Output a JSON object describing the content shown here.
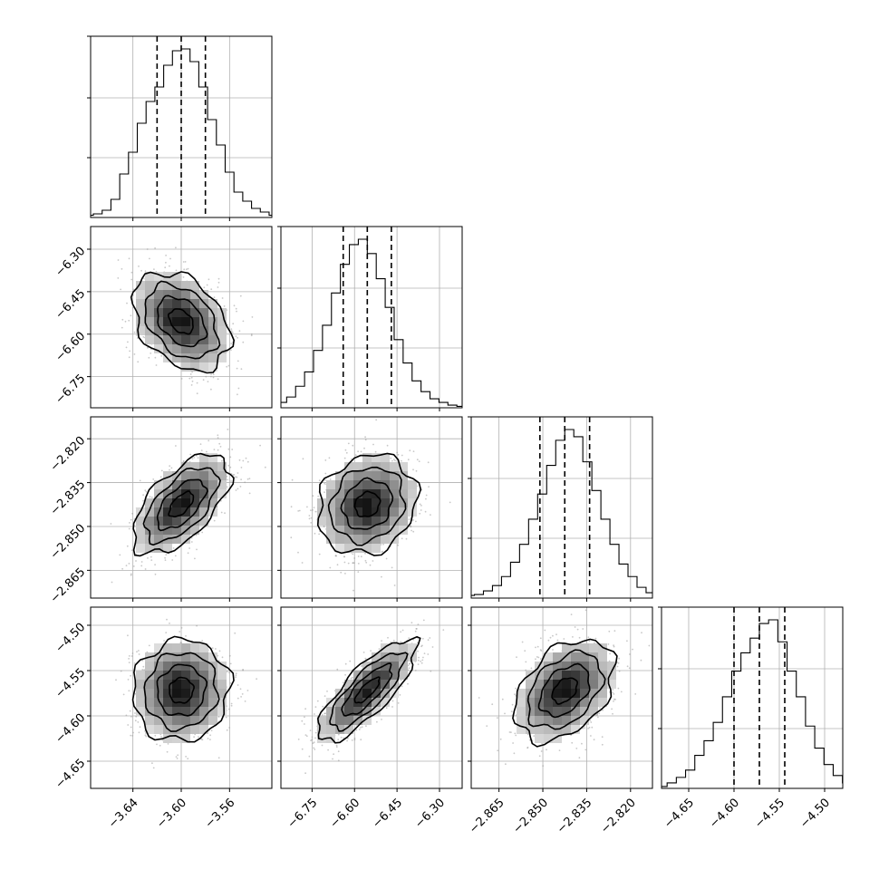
{
  "chart_data": {
    "type": "corner",
    "parameters": [
      {
        "range": [
          -3.675,
          -3.525
        ],
        "ticks": [
          -3.64,
          -3.6,
          -3.56
        ],
        "tick_labels": [
          "−3.64",
          "−3.60",
          "−3.56"
        ],
        "mean": -3.6,
        "std": 0.02,
        "quantiles": [
          -3.62,
          -3.6,
          -3.58
        ],
        "hist_counts": [
          0.012,
          0.02,
          0.04,
          0.1,
          0.24,
          0.36,
          0.52,
          0.64,
          0.72,
          0.84,
          0.92,
          0.93,
          0.86,
          0.72,
          0.54,
          0.4,
          0.25,
          0.14,
          0.09,
          0.05,
          0.03,
          0.012
        ]
      },
      {
        "range": [
          -6.86,
          -6.22
        ],
        "ticks": [
          -6.75,
          -6.6,
          -6.45,
          -6.3
        ],
        "tick_labels": [
          "−6.75",
          "−6.60",
          "−6.45",
          "−6.30"
        ],
        "mean": -6.555,
        "std": 0.087,
        "quantiles": [
          -6.64,
          -6.555,
          -6.47
        ],
        "hist_counts": [
          0.012,
          0.03,
          0.06,
          0.12,
          0.2,
          0.32,
          0.46,
          0.64,
          0.8,
          0.91,
          0.94,
          0.86,
          0.72,
          0.56,
          0.38,
          0.25,
          0.15,
          0.09,
          0.05,
          0.03,
          0.015,
          0.008
        ]
      },
      {
        "range": [
          -2.8745,
          -2.8125
        ],
        "ticks": [
          -2.865,
          -2.85,
          -2.835,
          -2.82
        ],
        "tick_labels": [
          "−2.865",
          "−2.850",
          "−2.835",
          "−2.820"
        ],
        "mean": -2.8425,
        "std": 0.0085,
        "quantiles": [
          -2.851,
          -2.8425,
          -2.834
        ],
        "hist_counts": [
          0.015,
          0.02,
          0.04,
          0.07,
          0.12,
          0.2,
          0.3,
          0.44,
          0.58,
          0.74,
          0.88,
          0.94,
          0.9,
          0.76,
          0.6,
          0.44,
          0.3,
          0.19,
          0.12,
          0.06,
          0.03,
          0.012
        ]
      },
      {
        "range": [
          -4.68,
          -4.48
        ],
        "ticks": [
          -4.65,
          -4.6,
          -4.55,
          -4.5
        ],
        "tick_labels": [
          "−4.65",
          "−4.60",
          "−4.55",
          "−4.50"
        ],
        "mean": -4.572,
        "std": 0.028,
        "quantiles": [
          -4.6,
          -4.572,
          -4.544
        ],
        "hist_counts": [
          0.01,
          0.03,
          0.06,
          0.1,
          0.18,
          0.26,
          0.36,
          0.5,
          0.64,
          0.74,
          0.82,
          0.9,
          0.92,
          0.8,
          0.64,
          0.5,
          0.34,
          0.22,
          0.13,
          0.07,
          0.03,
          0.015
        ]
      }
    ],
    "correlations": {
      "1-0": -0.35,
      "2-0": 0.6,
      "2-1": 0.15,
      "3-0": 0.05,
      "3-1": 0.8,
      "3-2": 0.4
    },
    "contour_levels_sigma": [
      0.5,
      1.0,
      1.5,
      2.0
    ],
    "hist_yticks": [
      0.33,
      0.66
    ],
    "grid": true
  }
}
